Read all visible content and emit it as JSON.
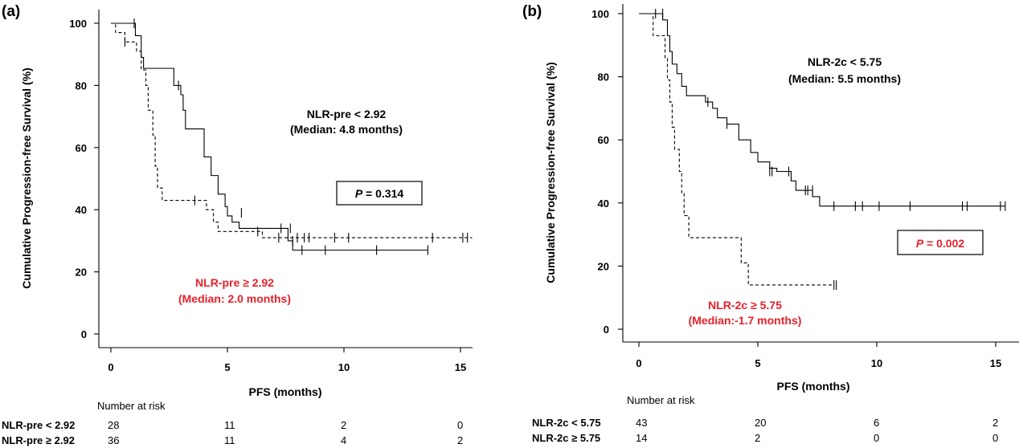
{
  "chart_data": [
    {
      "type": "line",
      "panel_label": "(a)",
      "xlabel": "PFS (months)",
      "ylabel": "Cumulative  Progression-free Survival (%)",
      "xlim": [
        0,
        15.5
      ],
      "ylim": [
        0,
        100
      ],
      "x_ticks": [
        "0",
        "5",
        "10",
        "15"
      ],
      "y_ticks": [
        "0",
        "20",
        "40",
        "60",
        "80",
        "100"
      ],
      "grid": false,
      "series": [
        {
          "name": "NLR-pre < 2.92",
          "median_label": "(Median: 4.8 months)",
          "color": "#000000",
          "dash": "solid",
          "steps": [
            [
              0,
              100
            ],
            [
              1.0,
              100
            ],
            [
              1.05,
              96
            ],
            [
              1.3,
              89
            ],
            [
              1.4,
              85.5
            ],
            [
              2.7,
              80
            ],
            [
              3.0,
              77
            ],
            [
              3.1,
              72
            ],
            [
              3.2,
              66
            ],
            [
              4.0,
              57
            ],
            [
              4.3,
              51
            ],
            [
              4.6,
              45
            ],
            [
              4.9,
              41
            ],
            [
              5.0,
              38
            ],
            [
              5.2,
              36
            ],
            [
              5.5,
              34
            ],
            [
              6.6,
              34
            ],
            [
              7.6,
              30
            ],
            [
              7.8,
              27
            ],
            [
              13.6,
              27
            ]
          ],
          "censors": [
            [
              1.0,
              100
            ],
            [
              2.9,
              80
            ],
            [
              5.6,
              39
            ],
            [
              7.3,
              34
            ],
            [
              7.7,
              34
            ],
            [
              7.8,
              30
            ],
            [
              8.2,
              27
            ],
            [
              9.2,
              27
            ],
            [
              11.4,
              27
            ],
            [
              13.6,
              27
            ]
          ]
        },
        {
          "name": "NLR-pre ≥ 2.92",
          "median_label": "(Median: 2.0 months)",
          "color": "#e8202a",
          "dash": "dashed",
          "steps": [
            [
              0,
              100
            ],
            [
              0.2,
              97
            ],
            [
              0.6,
              94
            ],
            [
              1.1,
              91
            ],
            [
              1.3,
              85
            ],
            [
              1.5,
              80
            ],
            [
              1.6,
              72
            ],
            [
              1.8,
              64
            ],
            [
              1.9,
              54
            ],
            [
              2.0,
              47
            ],
            [
              2.2,
              43
            ],
            [
              3.8,
              43
            ],
            [
              4.1,
              40
            ],
            [
              4.4,
              36
            ],
            [
              4.6,
              33
            ],
            [
              6.3,
              33
            ],
            [
              6.5,
              31
            ],
            [
              15.5,
              31
            ]
          ],
          "censors": [
            [
              0.6,
              94
            ],
            [
              3.6,
              43
            ],
            [
              6.3,
              33
            ],
            [
              7.2,
              31
            ],
            [
              8.0,
              31
            ],
            [
              8.3,
              31
            ],
            [
              8.5,
              31
            ],
            [
              9.6,
              31
            ],
            [
              10.2,
              31
            ],
            [
              13.8,
              31
            ],
            [
              15.1,
              31
            ],
            [
              15.3,
              31
            ]
          ]
        }
      ],
      "annotations": {
        "group1_label": "NLR-pre < 2.92",
        "group1_median": "(Median: 4.8 months)",
        "group2_label": "NLR-pre ≥ 2.92",
        "group2_median": "(Median: 2.0 months)",
        "p_prefix": "P",
        "p_value": " = 0.314",
        "p_color": "#000000"
      },
      "risk_table": {
        "title": "Number at risk",
        "rows": [
          {
            "label": "NLR-pre < 2.92",
            "values": [
              "28",
              "11",
              "2",
              "0"
            ]
          },
          {
            "label": "NLR-pre ≥ 2.92",
            "values": [
              "36",
              "11",
              "4",
              "2"
            ]
          }
        ]
      }
    },
    {
      "type": "line",
      "panel_label": "(b)",
      "xlabel": "PFS (months)",
      "ylabel": "Cumulative  Progression-free Survival (%)",
      "xlim": [
        0,
        15.7
      ],
      "ylim": [
        0,
        100
      ],
      "x_ticks": [
        "0",
        "5",
        "10",
        "15"
      ],
      "y_ticks": [
        "0",
        "20",
        "40",
        "60",
        "80",
        "100"
      ],
      "grid": false,
      "series": [
        {
          "name": "NLR-2c < 5.75",
          "median_label": "(Median: 5.5 months)",
          "color": "#000000",
          "dash": "solid",
          "steps": [
            [
              0,
              100
            ],
            [
              0.9,
              100
            ],
            [
              1.0,
              98
            ],
            [
              1.2,
              93
            ],
            [
              1.3,
              88
            ],
            [
              1.4,
              84
            ],
            [
              1.6,
              81
            ],
            [
              1.8,
              77
            ],
            [
              2.0,
              74
            ],
            [
              2.8,
              72
            ],
            [
              3.1,
              70
            ],
            [
              3.3,
              67
            ],
            [
              3.7,
              65
            ],
            [
              4.2,
              60
            ],
            [
              4.7,
              56
            ],
            [
              5.0,
              53
            ],
            [
              5.5,
              51
            ],
            [
              5.8,
              50
            ],
            [
              6.4,
              47
            ],
            [
              6.6,
              44
            ],
            [
              7.3,
              42
            ],
            [
              7.6,
              39
            ],
            [
              15.4,
              39
            ]
          ],
          "censors": [
            [
              0.7,
              100
            ],
            [
              1.0,
              100
            ],
            [
              2.9,
              72
            ],
            [
              3.7,
              65
            ],
            [
              5.5,
              50
            ],
            [
              5.6,
              50
            ],
            [
              6.3,
              50
            ],
            [
              7.0,
              44
            ],
            [
              7.1,
              44
            ],
            [
              7.3,
              44
            ],
            [
              8.2,
              39
            ],
            [
              9.1,
              39
            ],
            [
              9.4,
              39
            ],
            [
              10.1,
              39
            ],
            [
              11.4,
              39
            ],
            [
              13.6,
              39
            ],
            [
              13.8,
              39
            ],
            [
              15.2,
              39
            ],
            [
              15.4,
              39
            ]
          ]
        },
        {
          "name": "NLR-2c ≥ 5.75",
          "median_label": "(Median:-1.7 months)",
          "color": "#e8202a",
          "dash": "dashed",
          "steps": [
            [
              0,
              100
            ],
            [
              0.6,
              93
            ],
            [
              1.1,
              86
            ],
            [
              1.2,
              79
            ],
            [
              1.3,
              72
            ],
            [
              1.4,
              64
            ],
            [
              1.5,
              57
            ],
            [
              1.7,
              50
            ],
            [
              1.8,
              43
            ],
            [
              1.9,
              36
            ],
            [
              2.1,
              29
            ],
            [
              4.2,
              29
            ],
            [
              4.3,
              21
            ],
            [
              4.6,
              14
            ],
            [
              8.2,
              14
            ]
          ],
          "censors": [
            [
              8.2,
              14
            ],
            [
              8.3,
              14
            ]
          ]
        }
      ],
      "annotations": {
        "group1_label": "NLR-2c < 5.75",
        "group1_median": "(Median: 5.5 months)",
        "group2_label": "NLR-2c ≥ 5.75",
        "group2_median": "(Median:-1.7 months)",
        "p_prefix": "P",
        "p_value": " = 0.002",
        "p_color": "#e8202a"
      },
      "risk_table": {
        "title": "Number at risk",
        "rows": [
          {
            "label": "NLR-2c < 5.75",
            "values": [
              "43",
              "20",
              "6",
              "2"
            ]
          },
          {
            "label": "NLR-2c ≥ 5.75",
            "values": [
              "14",
              "2",
              "0",
              "0"
            ]
          }
        ]
      }
    }
  ]
}
